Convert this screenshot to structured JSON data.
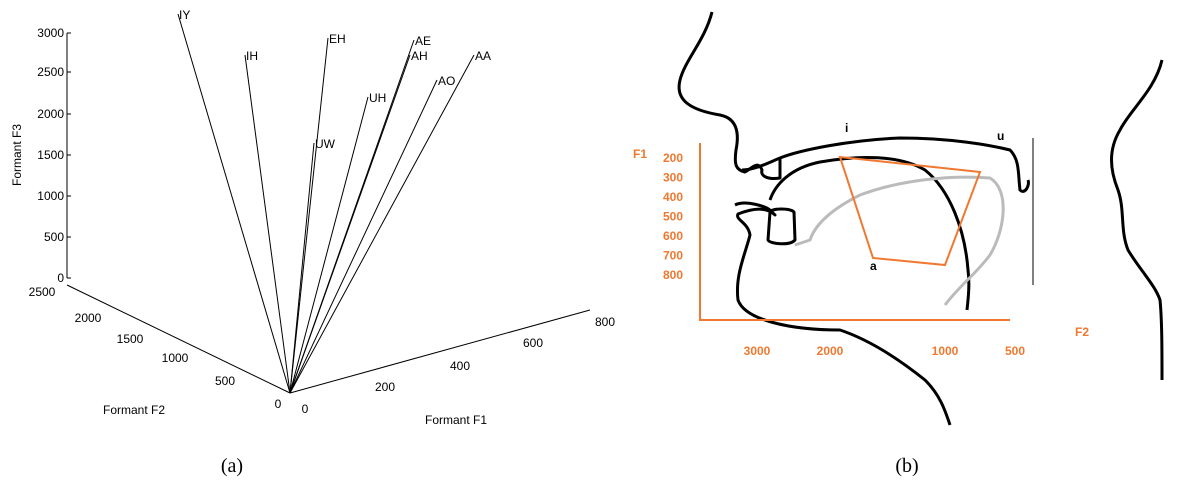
{
  "panel_a": {
    "caption": "(a)",
    "z_label": "Formant F3",
    "x_label": "Formant F2",
    "y_label": "Formant F1",
    "z_ticks": [
      "0",
      "500",
      "1000",
      "1500",
      "2000",
      "2500",
      "3000"
    ],
    "x_ticks": [
      "2500",
      "2000",
      "1500",
      "1000",
      "500",
      "0"
    ],
    "y_ticks": [
      "0",
      "200",
      "400",
      "600",
      "800"
    ],
    "vowels": [
      "IY",
      "IH",
      "EH",
      "AE",
      "AH",
      "AA",
      "UH",
      "AO",
      "UW"
    ]
  },
  "panel_b": {
    "caption": "(b)",
    "f1_label": "F1",
    "f2_label": "F2",
    "f1_ticks": [
      "200",
      "300",
      "400",
      "500",
      "600",
      "700",
      "800"
    ],
    "f2_ticks": [
      "3000",
      "2000",
      "1000",
      "500"
    ],
    "points": [
      "i",
      "u",
      "a"
    ]
  }
}
